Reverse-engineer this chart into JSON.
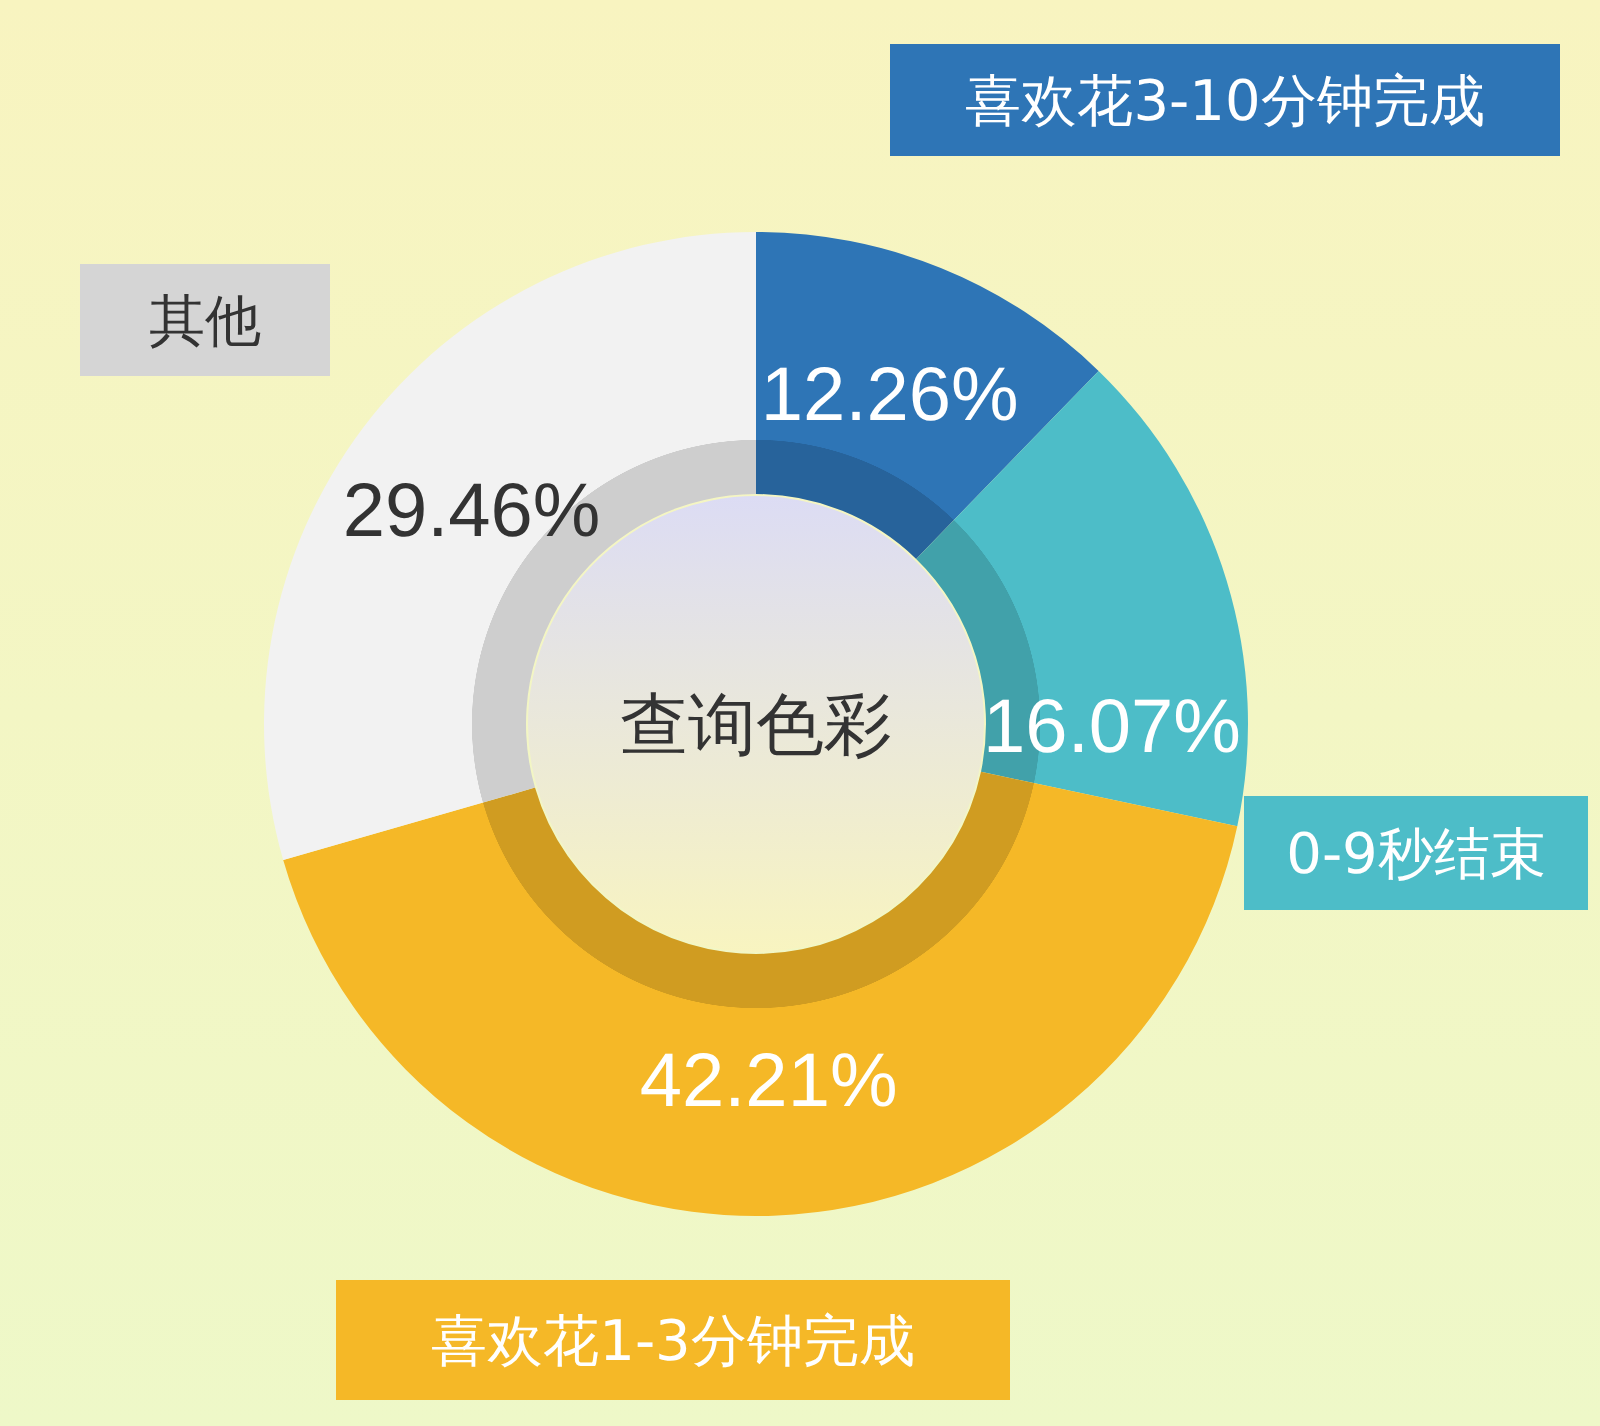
{
  "chart_data": {
    "type": "donut",
    "title": "查询色彩",
    "categories": [
      "喜欢花3-10分钟完成",
      "0-9秒结束",
      "喜欢花1-3分钟完成",
      "其他"
    ],
    "values": [
      12.26,
      16.07,
      42.21,
      29.46
    ],
    "colors": [
      "#2e75b6",
      "#4dbdc8",
      "#f5b827",
      "#f2f2f2"
    ],
    "value_labels": [
      "12.26%",
      "16.07%",
      "42.21%",
      "29.46%"
    ]
  }
}
